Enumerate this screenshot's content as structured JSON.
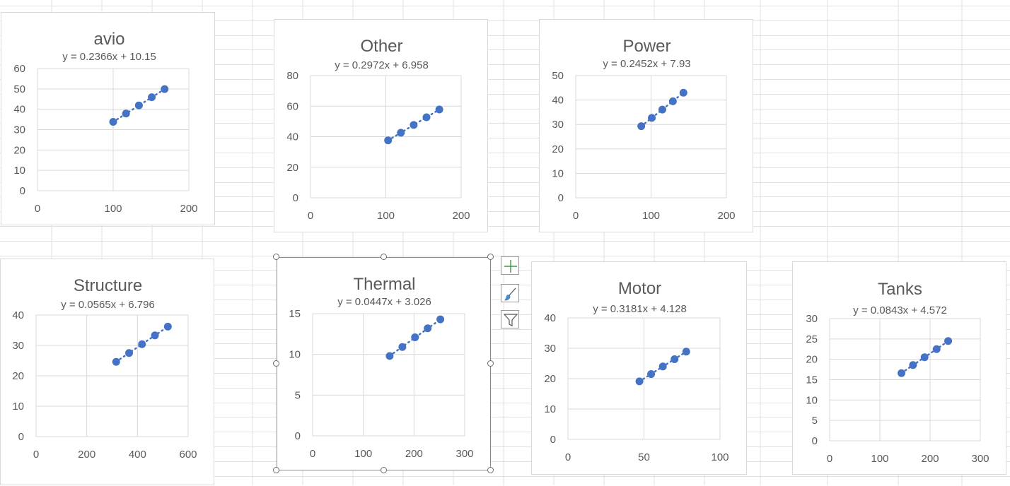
{
  "sheet": {
    "gridline_color": "#e1e1e1"
  },
  "style": {
    "marker_color": "#4472c4",
    "trendline_color": "#4472c4",
    "grid_color": "#d9d9d9",
    "text_color": "#595959"
  },
  "side_buttons": [
    {
      "name": "chart-elements-button",
      "icon": "plus-icon"
    },
    {
      "name": "chart-styles-button",
      "icon": "paintbrush-icon"
    },
    {
      "name": "chart-filters-button",
      "icon": "funnel-icon"
    }
  ],
  "chart_data": [
    {
      "type": "scatter",
      "title": "avio",
      "equation": "y = 0.2366x + 10.15",
      "x": [
        100,
        117,
        134,
        151,
        168
      ],
      "y": [
        33.8,
        37.9,
        41.9,
        45.9,
        49.9
      ],
      "xlim": [
        0,
        200
      ],
      "ylim": [
        0,
        60
      ],
      "xticks": [
        0,
        100,
        200
      ],
      "yticks": [
        0,
        10,
        20,
        30,
        40,
        50,
        60
      ],
      "trendline": {
        "slope": 0.2366,
        "intercept": 10.15
      },
      "grid": true,
      "legend": "none"
    },
    {
      "type": "scatter",
      "title": "Other",
      "equation": "y = 0.2972x + 6.958",
      "x": [
        103,
        120,
        137,
        154,
        171
      ],
      "y": [
        37.6,
        42.6,
        47.7,
        52.7,
        57.8
      ],
      "xlim": [
        0,
        200
      ],
      "ylim": [
        0,
        80
      ],
      "xticks": [
        0,
        100,
        200
      ],
      "yticks": [
        0,
        20,
        40,
        60,
        80
      ],
      "trendline": {
        "slope": 0.2972,
        "intercept": 6.958
      },
      "grid": true,
      "legend": "none"
    },
    {
      "type": "scatter",
      "title": "Power",
      "equation": "y = 0.2452x + 7.93",
      "x": [
        87,
        101,
        115,
        129,
        143
      ],
      "y": [
        29.3,
        32.7,
        36.1,
        39.5,
        43.0
      ],
      "xlim": [
        0,
        200
      ],
      "ylim": [
        0,
        50
      ],
      "xticks": [
        0,
        100,
        200
      ],
      "yticks": [
        0,
        10,
        20,
        30,
        40,
        50
      ],
      "trendline": {
        "slope": 0.2452,
        "intercept": 7.93
      },
      "grid": true,
      "legend": "none"
    },
    {
      "type": "scatter",
      "title": "Structure",
      "equation": "y = 0.0565x + 6.796",
      "x": [
        316,
        367,
        418,
        469,
        520
      ],
      "y": [
        24.6,
        27.5,
        30.4,
        33.3,
        36.2
      ],
      "xlim": [
        0,
        600
      ],
      "ylim": [
        0,
        40
      ],
      "xticks": [
        0,
        200,
        400,
        600
      ],
      "yticks": [
        0,
        10,
        20,
        30,
        40
      ],
      "trendline": {
        "slope": 0.0565,
        "intercept": 6.796
      },
      "grid": true,
      "legend": "none"
    },
    {
      "type": "scatter",
      "title": "Thermal",
      "equation": "y = 0.0447x + 3.026",
      "x": [
        152,
        177,
        202,
        227,
        252
      ],
      "y": [
        9.8,
        10.9,
        12.1,
        13.2,
        14.3
      ],
      "xlim": [
        0,
        300
      ],
      "ylim": [
        0,
        15
      ],
      "xticks": [
        0,
        100,
        200,
        300
      ],
      "yticks": [
        0,
        5,
        10,
        15
      ],
      "trendline": {
        "slope": 0.0447,
        "intercept": 3.026
      },
      "grid": true,
      "legend": "none",
      "selected": true
    },
    {
      "type": "scatter",
      "title": "Motor",
      "equation": "y = 0.3181x + 4.128",
      "x": [
        47,
        54.7,
        62.4,
        70.1,
        77.8
      ],
      "y": [
        19.1,
        21.5,
        24.0,
        26.4,
        28.9
      ],
      "xlim": [
        0,
        100
      ],
      "ylim": [
        0,
        40
      ],
      "xticks": [
        0,
        50,
        100
      ],
      "yticks": [
        0,
        10,
        20,
        30,
        40
      ],
      "trendline": {
        "slope": 0.3181,
        "intercept": 4.128
      },
      "grid": true,
      "legend": "none"
    },
    {
      "type": "scatter",
      "title": "Tanks",
      "equation": "y = 0.0843x + 4.572",
      "x": [
        143,
        166,
        189,
        213,
        236
      ],
      "y": [
        16.6,
        18.6,
        20.5,
        22.5,
        24.5
      ],
      "xlim": [
        0,
        300
      ],
      "ylim": [
        0,
        30
      ],
      "xticks": [
        0,
        100,
        200,
        300
      ],
      "yticks": [
        0,
        5,
        10,
        15,
        20,
        25,
        30
      ],
      "trendline": {
        "slope": 0.0843,
        "intercept": 4.572
      },
      "grid": true,
      "legend": "none"
    }
  ]
}
